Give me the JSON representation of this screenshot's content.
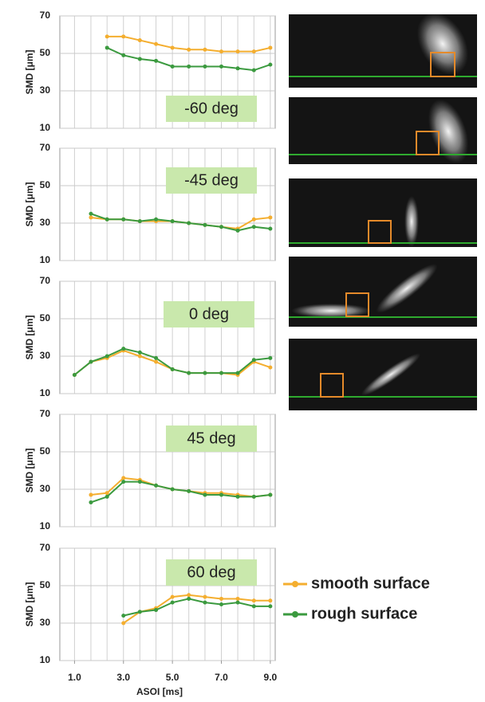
{
  "chart_data": [
    {
      "type": "line",
      "annotation": "-60 deg",
      "y_label": "SMD [μm]",
      "xlim": [
        0.4,
        9.2
      ],
      "ylim": [
        10,
        70
      ],
      "yticks": [
        10,
        30,
        50,
        70
      ],
      "x": [
        1.0,
        1.67,
        2.33,
        3.0,
        3.67,
        4.33,
        5.0,
        5.67,
        6.33,
        7.0,
        7.67,
        8.33,
        9.0
      ],
      "series": [
        {
          "color": "#f4ae2f",
          "values": [
            null,
            null,
            59,
            59,
            57,
            55,
            53,
            52,
            52,
            51,
            51,
            51,
            53
          ]
        },
        {
          "color": "#3b9a3f",
          "values": [
            null,
            null,
            53,
            49,
            47,
            46,
            43,
            43,
            43,
            43,
            42,
            41,
            44
          ]
        }
      ]
    },
    {
      "type": "line",
      "annotation": "-45 deg",
      "y_label": "SMD [μm]",
      "xlim": [
        0.4,
        9.2
      ],
      "ylim": [
        10,
        70
      ],
      "yticks": [
        10,
        30,
        50,
        70
      ],
      "x": [
        1.0,
        1.67,
        2.33,
        3.0,
        3.67,
        4.33,
        5.0,
        5.67,
        6.33,
        7.0,
        7.67,
        8.33,
        9.0
      ],
      "series": [
        {
          "color": "#f4ae2f",
          "values": [
            null,
            33,
            32,
            32,
            31,
            31,
            31,
            30,
            29,
            28,
            27,
            32,
            33
          ]
        },
        {
          "color": "#3b9a3f",
          "values": [
            null,
            35,
            32,
            32,
            31,
            32,
            31,
            30,
            29,
            28,
            26,
            28,
            27
          ]
        }
      ]
    },
    {
      "type": "line",
      "annotation": "0 deg",
      "y_label": "SMD [μm]",
      "xlim": [
        0.4,
        9.2
      ],
      "ylim": [
        10,
        70
      ],
      "yticks": [
        10,
        30,
        50,
        70
      ],
      "x": [
        1.0,
        1.67,
        2.33,
        3.0,
        3.67,
        4.33,
        5.0,
        5.67,
        6.33,
        7.0,
        7.67,
        8.33,
        9.0
      ],
      "series": [
        {
          "color": "#f4ae2f",
          "values": [
            20,
            27,
            29,
            33,
            30,
            27,
            23,
            21,
            21,
            21,
            20,
            27,
            24
          ]
        },
        {
          "color": "#3b9a3f",
          "values": [
            20,
            27,
            30,
            34,
            32,
            29,
            23,
            21,
            21,
            21,
            21,
            28,
            29
          ]
        }
      ]
    },
    {
      "type": "line",
      "annotation": "45 deg",
      "y_label": "SMD [μm]",
      "xlim": [
        0.4,
        9.2
      ],
      "ylim": [
        10,
        70
      ],
      "yticks": [
        10,
        30,
        50,
        70
      ],
      "x": [
        1.0,
        1.67,
        2.33,
        3.0,
        3.67,
        4.33,
        5.0,
        5.67,
        6.33,
        7.0,
        7.67,
        8.33,
        9.0
      ],
      "series": [
        {
          "color": "#f4ae2f",
          "values": [
            null,
            27,
            28,
            36,
            35,
            32,
            30,
            29,
            28,
            28,
            27,
            26,
            27
          ]
        },
        {
          "color": "#3b9a3f",
          "values": [
            null,
            23,
            26,
            34,
            34,
            32,
            30,
            29,
            27,
            27,
            26,
            26,
            27
          ]
        }
      ]
    },
    {
      "type": "line",
      "annotation": "60 deg",
      "y_label": "SMD [μm]",
      "x_label": "ASOI [ms]",
      "xlim": [
        0.4,
        9.2
      ],
      "ylim": [
        10,
        70
      ],
      "yticks": [
        10,
        30,
        50,
        70
      ],
      "xticks": [
        {
          "value": 1,
          "label": "1.0"
        },
        {
          "value": 3,
          "label": "3.0"
        },
        {
          "value": 5,
          "label": "5.0"
        },
        {
          "value": 7,
          "label": "7.0"
        },
        {
          "value": 9,
          "label": "9.0"
        }
      ],
      "x": [
        1.0,
        1.67,
        2.33,
        3.0,
        3.67,
        4.33,
        5.0,
        5.67,
        6.33,
        7.0,
        7.67,
        8.33,
        9.0
      ],
      "series": [
        {
          "name": "smooth surface",
          "color": "#f4ae2f",
          "values": [
            null,
            null,
            null,
            30,
            36,
            38,
            44,
            45,
            44,
            43,
            43,
            42,
            42
          ]
        },
        {
          "name": "rough surface",
          "color": "#3b9a3f",
          "values": [
            null,
            null,
            null,
            34,
            36,
            37,
            41,
            43,
            41,
            40,
            41,
            39,
            39
          ]
        }
      ]
    }
  ]
}
